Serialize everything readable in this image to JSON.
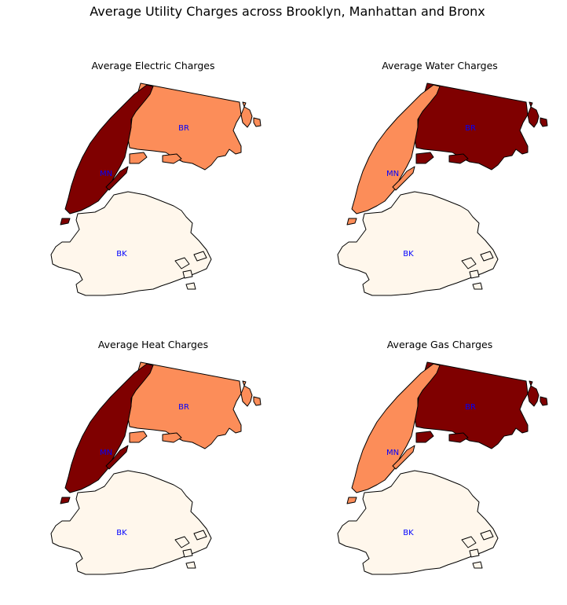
{
  "suptitle": "Average Utility Charges across Brooklyn, Manhattan and Bronx",
  "colors": {
    "high": "#7f0000",
    "mid": "#fc8d59",
    "low": "#fff7ec",
    "label": "#0000ff"
  },
  "panels": [
    {
      "title": "Average Electric Charges",
      "levels": {
        "BR": "mid",
        "MN": "high",
        "BK": "low"
      }
    },
    {
      "title": "Average Water Charges",
      "levels": {
        "BR": "high",
        "MN": "mid",
        "BK": "low"
      }
    },
    {
      "title": "Average Heat Charges",
      "levels": {
        "BR": "mid",
        "MN": "high",
        "BK": "low"
      }
    },
    {
      "title": "Average Gas Charges",
      "levels": {
        "BR": "high",
        "MN": "mid",
        "BK": "low"
      }
    }
  ],
  "labels": {
    "bronx": "BR",
    "manhattan": "MN",
    "brooklyn": "BK"
  }
}
